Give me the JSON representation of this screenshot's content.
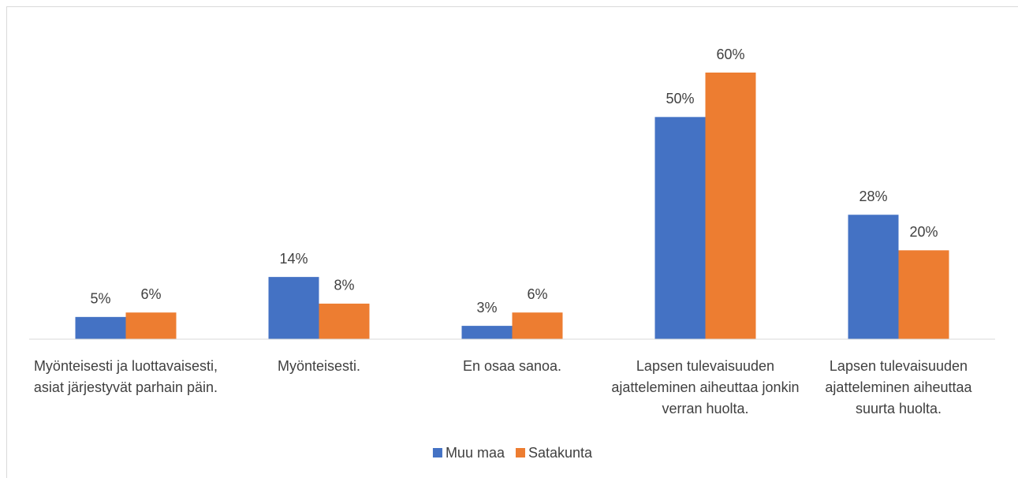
{
  "chart_data": {
    "type": "bar",
    "categories": [
      "Myönteisesti ja luottavaisesti, asiat järjestyvät parhain päin.",
      "Myönteisesti.",
      "En osaa sanoa.",
      "Lapsen tulevaisuuden ajatteleminen aiheuttaa jonkin verran huolta.",
      "Lapsen tulevaisuuden ajatteleminen aiheuttaa suurta huolta."
    ],
    "series": [
      {
        "name": "Muu maa",
        "color": "#4472c4",
        "values": [
          5,
          14,
          3,
          50,
          28
        ],
        "value_labels": [
          "5%",
          "14%",
          "3%",
          "50%",
          "28%"
        ]
      },
      {
        "name": "Satakunta",
        "color": "#ed7d31",
        "values": [
          6,
          8,
          6,
          60,
          20
        ],
        "value_labels": [
          "6%",
          "8%",
          "6%",
          "60%",
          "20%"
        ]
      }
    ],
    "legend": "bottom"
  }
}
